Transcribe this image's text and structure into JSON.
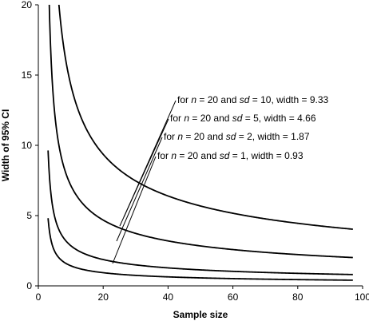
{
  "chart_data": {
    "type": "line",
    "xlabel": "Sample size",
    "ylabel": "Width of 95% CI",
    "xlim": [
      0,
      100
    ],
    "ylim": [
      0,
      20
    ],
    "xticks": [
      0,
      20,
      40,
      60,
      80,
      100
    ],
    "yticks": [
      0,
      5,
      10,
      15,
      20
    ],
    "grid": false,
    "curve_x_range": [
      3,
      97
    ],
    "series": [
      {
        "sd": 10,
        "color": "#000000"
      },
      {
        "sd": 5,
        "color": "#000000"
      },
      {
        "sd": 2,
        "color": "#000000"
      },
      {
        "sd": 1,
        "color": "#000000"
      }
    ],
    "annotations": [
      {
        "n": "20",
        "sd": "10",
        "width": "9.33",
        "anchor_x": 20,
        "anchor_y": 9.33
      },
      {
        "n": "20",
        "sd": "5",
        "width": "4.66",
        "anchor_x": 20,
        "anchor_y": 4.66
      },
      {
        "n": "20",
        "sd": "2",
        "width": "1.87",
        "anchor_x": 20,
        "anchor_y": 1.87
      },
      {
        "n": "20",
        "sd": "1",
        "width": "0.93",
        "anchor_x": 20,
        "anchor_y": 0.93
      }
    ]
  }
}
